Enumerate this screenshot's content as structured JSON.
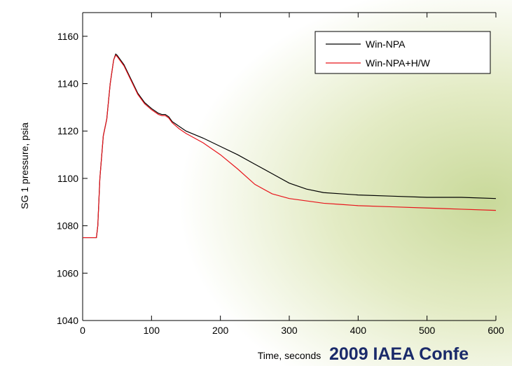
{
  "chart_data": {
    "type": "line",
    "xlabel": "Time, seconds",
    "ylabel": "SG 1 pressure, psia",
    "footer": "2009 IAEA Confe",
    "xlim": [
      0,
      600
    ],
    "ylim": [
      1040,
      1170
    ],
    "xticks": [
      0,
      100,
      200,
      300,
      400,
      500,
      600
    ],
    "yticks": [
      1040,
      1060,
      1080,
      1100,
      1120,
      1140,
      1160
    ],
    "legend": "upper right",
    "x": [
      0,
      20,
      22,
      25,
      30,
      35,
      40,
      45,
      48,
      50,
      55,
      60,
      70,
      80,
      90,
      100,
      110,
      115,
      120,
      125,
      130,
      140,
      150,
      175,
      200,
      225,
      250,
      275,
      300,
      325,
      350,
      375,
      400,
      450,
      500,
      550,
      600
    ],
    "series": [
      {
        "name": "Win-NPA",
        "color": "#000000",
        "values": [
          1075,
          1075,
          1080,
          1100,
          1118,
          1125,
          1140,
          1150,
          1152.5,
          1152,
          1150,
          1148,
          1142,
          1136,
          1132,
          1129.5,
          1127.5,
          1127,
          1127,
          1126,
          1124,
          1122,
          1120,
          1117,
          1113.5,
          1110,
          1106,
          1102,
          1098,
          1095.5,
          1094,
          1093.5,
          1093,
          1092.5,
          1092,
          1092,
          1091.5
        ]
      },
      {
        "name": "Win-NPA+H/W",
        "color": "#e8141b",
        "values": [
          1075,
          1075,
          1080,
          1100,
          1118,
          1125,
          1140,
          1150,
          1152,
          1151.5,
          1149.5,
          1147.5,
          1141.5,
          1135.5,
          1131.5,
          1129,
          1127,
          1126.5,
          1126.5,
          1125.5,
          1123.5,
          1121,
          1119,
          1115,
          1110,
          1104,
          1097.5,
          1093.5,
          1091.5,
          1090.5,
          1089.5,
          1089,
          1088.5,
          1088,
          1087.5,
          1087,
          1086.5
        ]
      }
    ]
  }
}
